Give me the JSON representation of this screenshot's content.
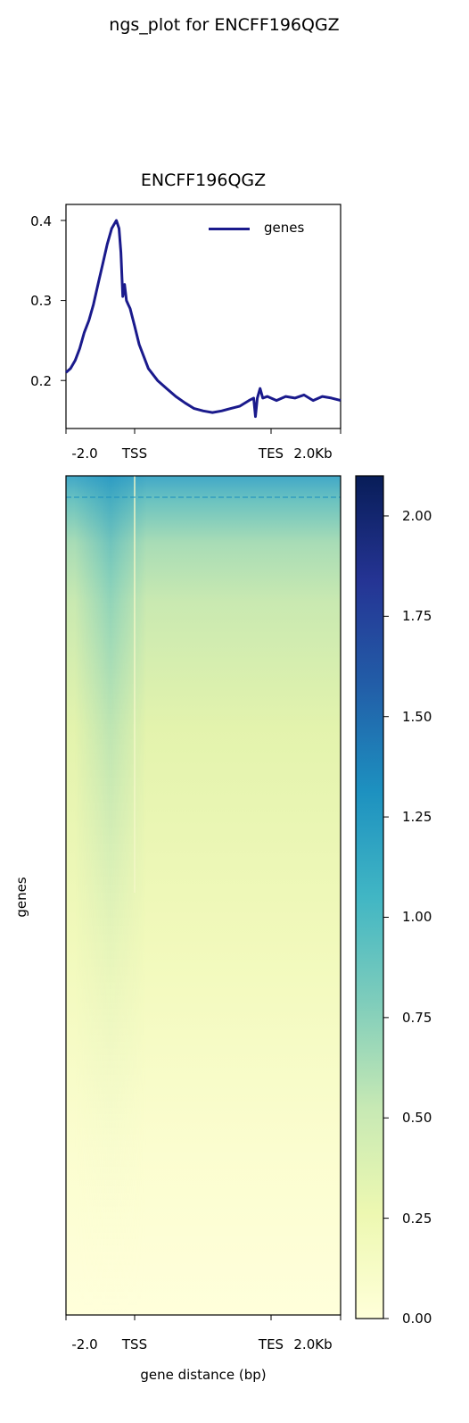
{
  "chart_data": [
    {
      "type": "line",
      "suptitle": "ngs_plot for ENCFF196QGZ",
      "title": "ENCFF196QGZ",
      "xlabel": "",
      "ylabel": "",
      "ylim": [
        0.14,
        0.42
      ],
      "yticks": [
        "0.2",
        "0.3",
        "0.4"
      ],
      "xticks": [
        "-2.0",
        "TSS",
        "TES",
        "2.0Kb"
      ],
      "legend": {
        "position": "top-right",
        "entries": [
          "genes"
        ]
      },
      "grid": false,
      "series": [
        {
          "name": "genes",
          "color": "#1a1a8c",
          "x": [
            0,
            5,
            10,
            15,
            20,
            25,
            30,
            35,
            40,
            45,
            50,
            55,
            58,
            60,
            62,
            64,
            66,
            68,
            70,
            75,
            80,
            90,
            100,
            110,
            120,
            130,
            140,
            150,
            160,
            170,
            180,
            190,
            200,
            205,
            207,
            209,
            212,
            215,
            220,
            230,
            240,
            250,
            260,
            270,
            280,
            290,
            300
          ],
          "y": [
            0.21,
            0.215,
            0.225,
            0.24,
            0.26,
            0.275,
            0.295,
            0.32,
            0.345,
            0.37,
            0.39,
            0.4,
            0.39,
            0.36,
            0.305,
            0.32,
            0.3,
            0.295,
            0.29,
            0.268,
            0.245,
            0.215,
            0.2,
            0.19,
            0.18,
            0.172,
            0.165,
            0.162,
            0.16,
            0.162,
            0.165,
            0.168,
            0.175,
            0.178,
            0.155,
            0.178,
            0.19,
            0.178,
            0.18,
            0.175,
            0.18,
            0.178,
            0.182,
            0.175,
            0.18,
            0.178,
            0.175
          ]
        }
      ]
    },
    {
      "type": "heatmap",
      "xlabel": "gene distance (bp)",
      "ylabel": "genes",
      "xticks": [
        "-2.0",
        "TSS",
        "TES",
        "2.0Kb"
      ],
      "colorbar": {
        "min": 0.0,
        "max": 2.1,
        "ticks": [
          "0.00",
          "0.25",
          "0.50",
          "0.75",
          "1.00",
          "1.25",
          "1.50",
          "1.75",
          "2.00"
        ],
        "colormap": [
          "#ffffd9",
          "#edf8b1",
          "#c7e9b4",
          "#7fcdbb",
          "#41b6c4",
          "#1d91c0",
          "#225ea8",
          "#253494",
          "#081d58"
        ]
      },
      "profile_note_values": {
        "row_band_mean": [
          1.2,
          0.9,
          0.7,
          0.55,
          0.45,
          0.38,
          0.3,
          0.24,
          0.18,
          0.13,
          0.09,
          0.06
        ],
        "tss_boost": [
          0.1,
          0.25,
          0.3,
          0.3,
          0.25,
          0.2,
          0.15,
          0.1,
          0.08,
          0.05,
          0.03,
          0.02
        ]
      }
    }
  ]
}
